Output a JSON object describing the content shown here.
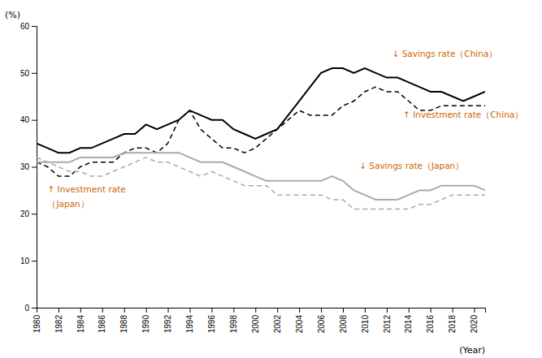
{
  "chart_data": {
    "type": "line",
    "x": [
      1980,
      1981,
      1982,
      1983,
      1984,
      1985,
      1986,
      1987,
      1988,
      1989,
      1990,
      1991,
      1992,
      1993,
      1994,
      1995,
      1996,
      1997,
      1998,
      1999,
      2000,
      2001,
      2002,
      2003,
      2004,
      2005,
      2006,
      2007,
      2008,
      2009,
      2010,
      2011,
      2012,
      2013,
      2014,
      2015,
      2016,
      2017,
      2018,
      2019,
      2020,
      2021
    ],
    "series": [
      {
        "color": "#000000",
        "line_style": "solid",
        "values": [
          35,
          34,
          33,
          33,
          34,
          34,
          35,
          36,
          37,
          37,
          39,
          38,
          39,
          40,
          42,
          41,
          40,
          40,
          38,
          37,
          36,
          37,
          38,
          41,
          44,
          47,
          50,
          51,
          51,
          50,
          51,
          50,
          49,
          49,
          48,
          47,
          46,
          46,
          45,
          44,
          45,
          46
        ]
      },
      {
        "color": "#000000",
        "line_style": "dashed",
        "values": [
          31,
          30,
          28,
          28,
          30,
          31,
          31,
          31,
          33,
          34,
          34,
          33,
          35,
          40,
          42,
          38,
          36,
          34,
          34,
          33,
          34,
          36,
          38,
          40,
          42,
          41,
          41,
          41,
          43,
          44,
          46,
          47,
          46,
          46,
          44,
          42,
          42,
          43,
          43,
          43,
          43,
          43
        ]
      },
      {
        "color": "#aaaaaa",
        "line_style": "solid",
        "values": [
          31,
          31,
          31,
          31,
          32,
          32,
          32,
          32,
          33,
          33,
          33,
          33,
          33,
          33,
          32,
          31,
          31,
          31,
          30,
          29,
          28,
          27,
          27,
          27,
          27,
          27,
          27,
          28,
          27,
          25,
          24,
          23,
          23,
          23,
          24,
          25,
          25,
          26,
          26,
          26,
          26,
          25
        ]
      },
      {
        "color": "#aaaaaa",
        "line_style": "dashed",
        "values": [
          32,
          31,
          30,
          29,
          29,
          28,
          28,
          29,
          30,
          31,
          32,
          31,
          31,
          30,
          29,
          28,
          29,
          28,
          27,
          26,
          26,
          26,
          24,
          24,
          24,
          24,
          24,
          23,
          23,
          21,
          21,
          21,
          21,
          21,
          21,
          22,
          22,
          23,
          24,
          24,
          24,
          24
        ]
      }
    ],
    "x_label": "(Year)",
    "y_label": "(%)",
    "xlim": [
      1980,
      2021
    ],
    "xticks": [
      1980,
      1982,
      1984,
      1986,
      1988,
      1990,
      1992,
      1994,
      1996,
      1998,
      2000,
      2002,
      2004,
      2006,
      2008,
      2010,
      2012,
      2014,
      2016,
      2018,
      2020
    ],
    "ylim": [
      0,
      60
    ],
    "yticks": [
      0,
      10,
      20,
      30,
      40,
      50,
      60
    ],
    "grid": false,
    "annotations": [
      {
        "text": "↓ Savings rate（China）",
        "x": 2012.5,
        "y": 53.5,
        "color": "#cc6600"
      },
      {
        "text": "↑ Investment rate（China）",
        "x": 2013.5,
        "y": 40.5,
        "color": "#cc6600"
      },
      {
        "text": "↓ Savings rate（Japan）",
        "x": 2009.5,
        "y": 29.5,
        "color": "#cc6600"
      },
      {
        "text": "↑ Investment rate",
        "x": 1981.0,
        "y": 24.5,
        "color": "#cc6600"
      },
      {
        "text": "（Japan）",
        "x": 1981.0,
        "y": 21.5,
        "color": "#cc6600"
      }
    ]
  }
}
